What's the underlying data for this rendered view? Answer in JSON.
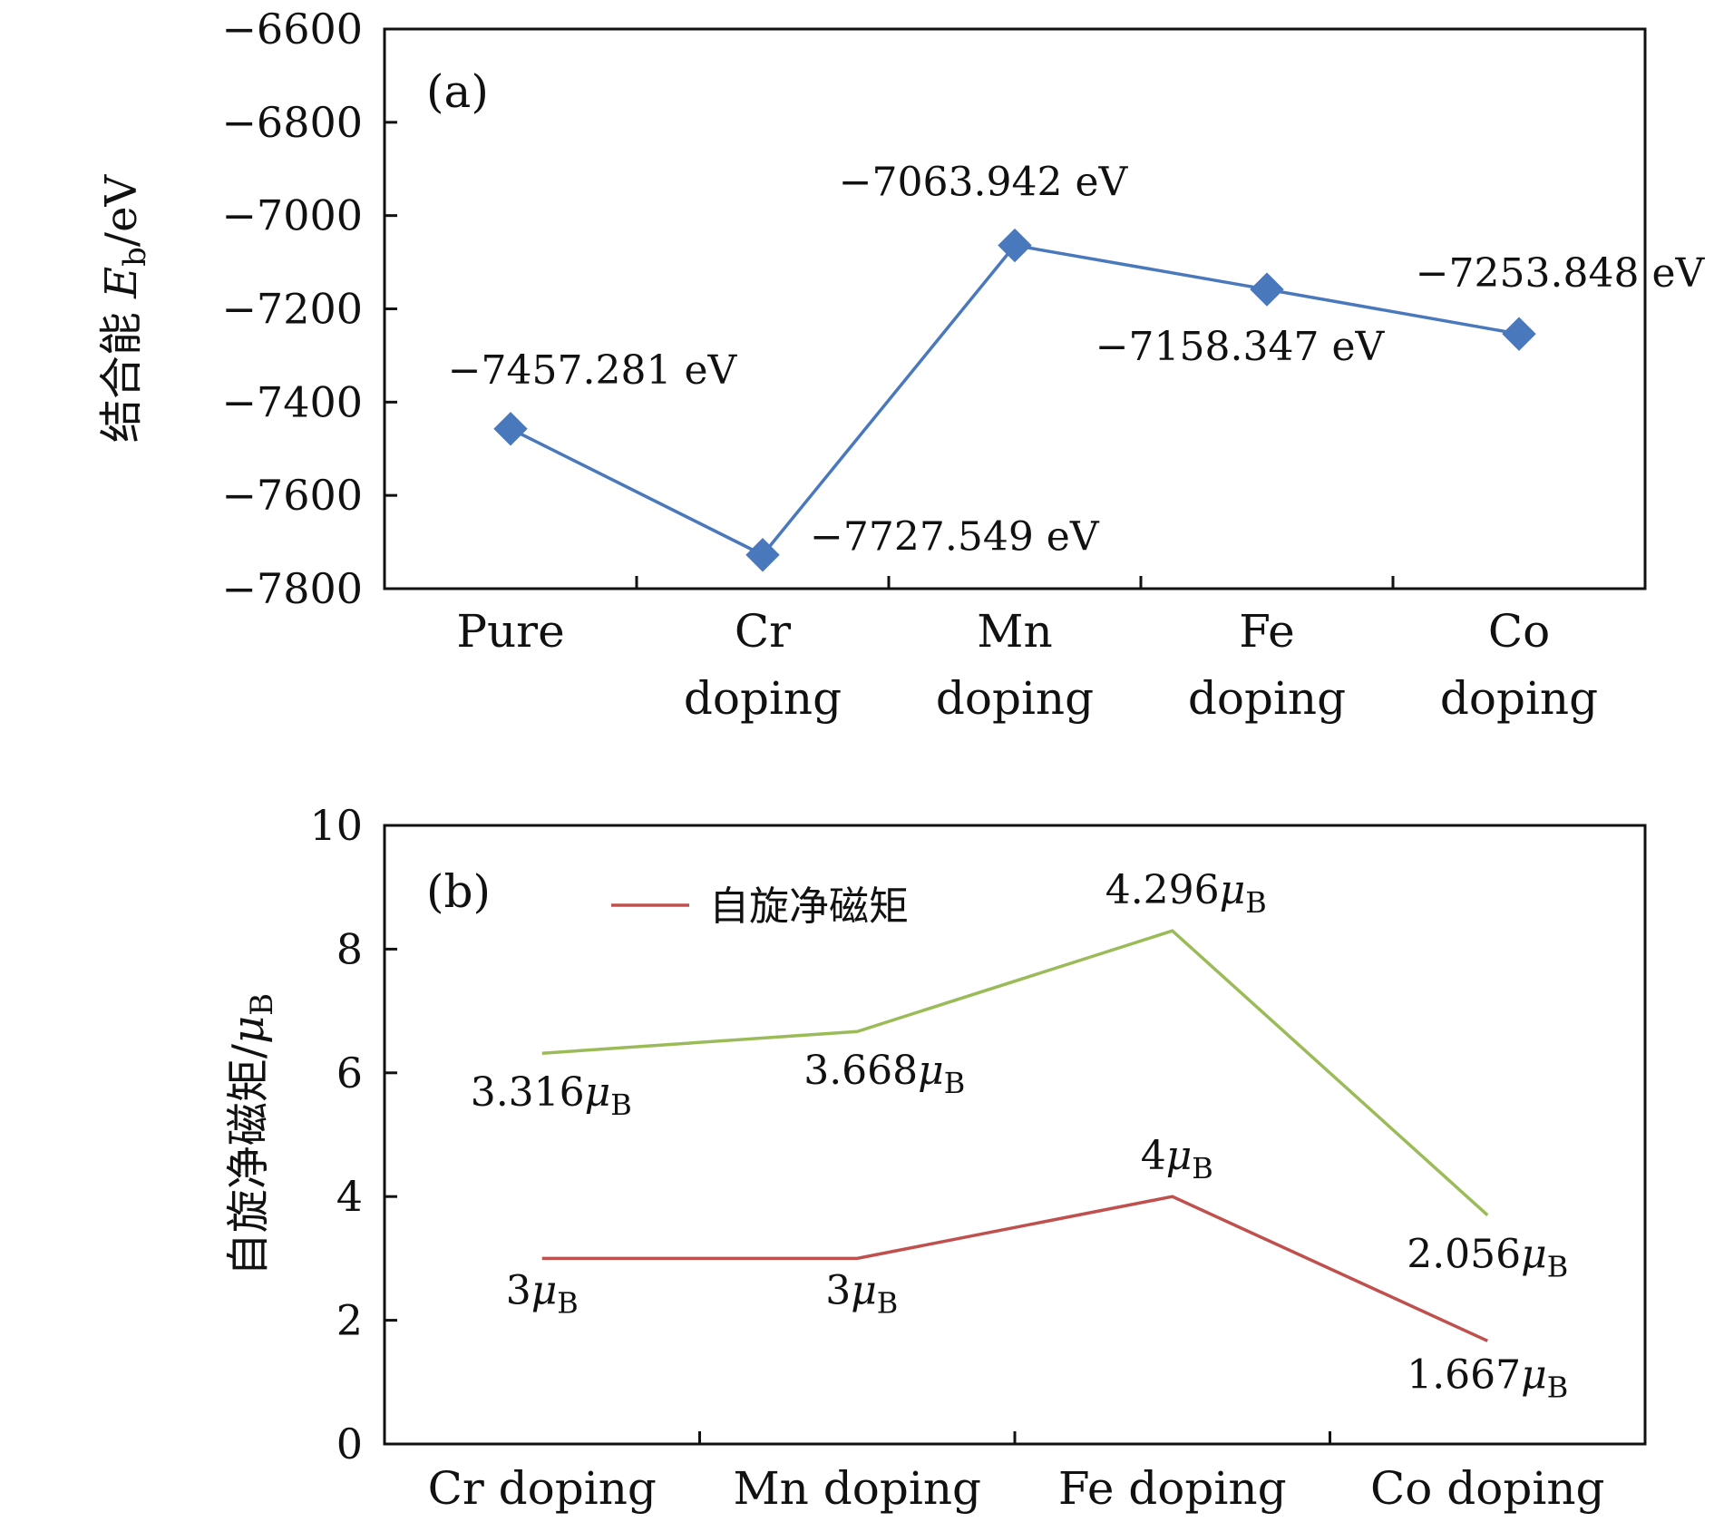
{
  "chart_data": [
    {
      "type": "line",
      "panel_label": "(a)",
      "ylabel": "结合能 E_b/eV",
      "ylabel_parts": {
        "prefix": "结合能 ",
        "symbol": "E",
        "subscript": "b",
        "suffix": "/eV"
      },
      "categories": [
        [
          "Pure"
        ],
        [
          "Cr",
          "doping"
        ],
        [
          "Mn",
          "doping"
        ],
        [
          "Fe",
          "doping"
        ],
        [
          "Co",
          "doping"
        ]
      ],
      "ylim": [
        -7800,
        -6600
      ],
      "yticks": [
        -6600,
        -6800,
        -7000,
        -7200,
        -7400,
        -7600,
        -7800
      ],
      "ytick_labels": [
        "−6600",
        "−6800",
        "−7000",
        "−7200",
        "−7400",
        "−7600",
        "−7800"
      ],
      "series": [
        {
          "name": "结合能",
          "color": "#4a78bd",
          "marker": "diamond",
          "values": [
            -7457.281,
            -7727.549,
            -7063.942,
            -7158.347,
            -7253.848
          ]
        }
      ],
      "annotations": [
        "−7457.281 eV",
        "−7727.549 eV",
        "−7063.942 eV",
        "−7158.347 eV",
        "−7253.848 eV"
      ]
    },
    {
      "type": "line",
      "panel_label": "(b)",
      "ylabel": "自旋净磁矩/μ_B",
      "ylabel_parts": {
        "prefix": "自旋净磁矩/",
        "symbol": "μ",
        "subscript": "B"
      },
      "categories": [
        "Cr doping",
        "Mn doping",
        "Fe doping",
        "Co doping"
      ],
      "ylim": [
        0,
        10
      ],
      "yticks": [
        0,
        2,
        4,
        6,
        8,
        10
      ],
      "ytick_labels": [
        "0",
        "2",
        "4",
        "6",
        "8",
        "10"
      ],
      "legend": {
        "label": "自旋净磁矩",
        "color": "#c0504d",
        "position": "top-left"
      },
      "series": [
        {
          "name": "自旋净磁矩",
          "color": "#c0504d",
          "values": [
            3,
            3,
            4,
            1.667
          ],
          "labels": [
            {
              "num": "3",
              "sym": "μ",
              "sub": "B"
            },
            {
              "num": "3",
              "sym": "μ",
              "sub": "B"
            },
            {
              "num": "4",
              "sym": "μ",
              "sub": "B"
            },
            {
              "num": "1.667",
              "sym": "μ",
              "sub": "B"
            }
          ]
        },
        {
          "name": "green series",
          "color": "#9bbb59",
          "values": [
            6.316,
            6.668,
            8.296,
            3.7
          ],
          "labels": [
            {
              "num": "3.316",
              "sym": "μ",
              "sub": "B"
            },
            {
              "num": "3.668",
              "sym": "μ",
              "sub": "B"
            },
            {
              "num": "4.296",
              "sym": "μ",
              "sub": "B"
            },
            {
              "num": "2.056",
              "sym": "μ",
              "sub": "B"
            }
          ]
        }
      ]
    }
  ]
}
